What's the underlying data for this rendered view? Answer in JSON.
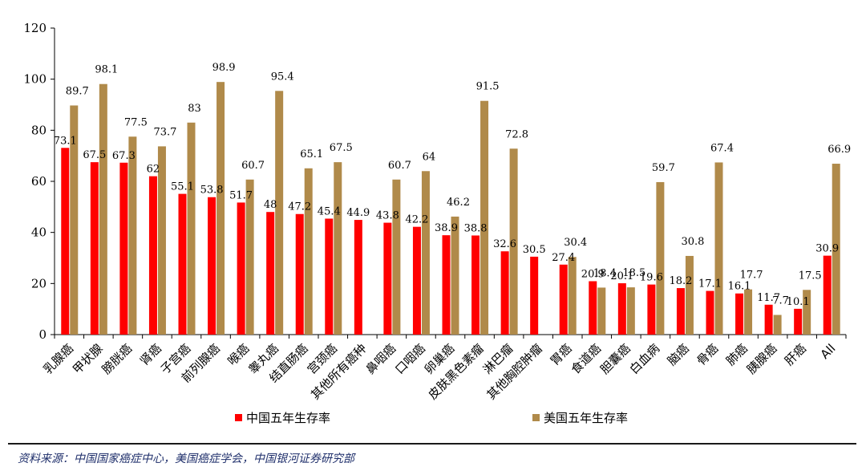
{
  "chart_data": {
    "type": "bar",
    "categories": [
      "乳腺癌",
      "甲状腺",
      "膀胱癌",
      "肾癌",
      "子宫癌",
      "前列腺癌",
      "喉癌",
      "睾丸癌",
      "结直肠癌",
      "宫颈癌",
      "其他所有癌种",
      "鼻咽癌",
      "口咽癌",
      "卵巢癌",
      "皮肤黑色素瘤",
      "淋巴瘤",
      "其他胸腔肿瘤",
      "胃癌",
      "食道癌",
      "胆囊癌",
      "白血病",
      "脑癌",
      "骨癌",
      "肺癌",
      "胰腺癌",
      "肝癌",
      "All"
    ],
    "series": [
      {
        "name": "中国五年生存率",
        "color": "#ff0000",
        "values": [
          73.1,
          67.5,
          67.3,
          62,
          55.1,
          53.8,
          51.7,
          48,
          47.2,
          45.4,
          44.9,
          43.8,
          42.2,
          38.9,
          38.8,
          32.6,
          30.5,
          27.4,
          20.9,
          20.1,
          19.6,
          18.2,
          17.1,
          16.1,
          11.7,
          10.1,
          30.9
        ],
        "labels": [
          "73.1",
          "67.5",
          "67.3",
          "62",
          "55.1",
          "53.8",
          "51.7",
          "48",
          "47.2",
          "45.4",
          "44.9",
          "43.8",
          "42.2",
          "38.9",
          "38.8",
          "32.6",
          "30.5",
          "27.4",
          "20.9",
          "20.1",
          "19.6",
          "18.2",
          "17.1",
          "16.1",
          "11.7",
          "10.1",
          "30.9"
        ]
      },
      {
        "name": "美国五年生存率",
        "color": "#b08a4a",
        "values": [
          89.7,
          98.1,
          77.5,
          73.7,
          83,
          98.9,
          60.7,
          95.4,
          65.1,
          67.5,
          null,
          60.7,
          64,
          46.2,
          91.5,
          72.8,
          null,
          30.4,
          18.4,
          18.5,
          59.7,
          30.8,
          67.4,
          17.7,
          7.7,
          17.5,
          66.9
        ],
        "labels": [
          "89.7",
          "98.1",
          "77.5",
          "73.7",
          "83",
          "98.9",
          "60.7",
          "95.4",
          "65.1",
          "67.5",
          "",
          "60.7",
          "64",
          "46.2",
          "91.5",
          "72.8",
          "",
          "30.4",
          "18.4",
          "18.5",
          "59.7",
          "30.8",
          "67.4",
          "17.7",
          "7.7",
          "17.5",
          "66.9"
        ]
      }
    ],
    "yticks": [
      "0",
      "20",
      "40",
      "60",
      "80",
      "100",
      "120"
    ],
    "ylim": [
      0,
      120
    ],
    "grid": false,
    "legend_position": "bottom"
  },
  "source_note": "资料来源：中国国家癌症中心，美国癌症学会，中国银河证券研究部"
}
